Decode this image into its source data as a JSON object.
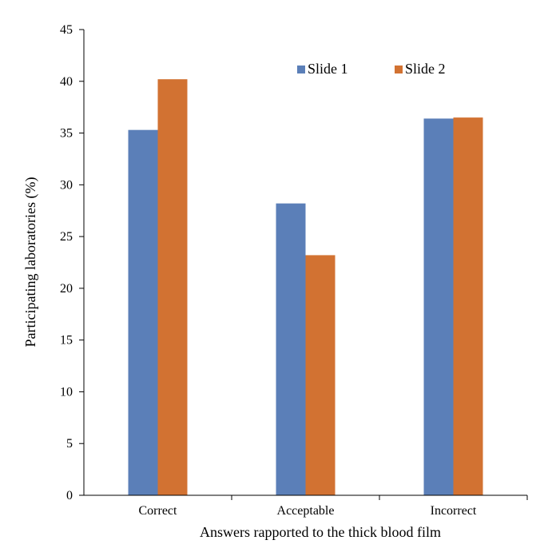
{
  "chart_data": {
    "type": "bar",
    "title": "",
    "xlabel": "Answers rapported to the thick blood film",
    "ylabel": "Participating laboratories (%)",
    "ylim": [
      0,
      45
    ],
    "yticks": [
      0,
      5,
      10,
      15,
      20,
      25,
      30,
      35,
      40,
      45
    ],
    "categories": [
      "Correct",
      "Acceptable",
      "Incorrect"
    ],
    "series": [
      {
        "name": "Slide 1",
        "color": "#5b7fb8",
        "values": [
          35.3,
          28.2,
          36.4
        ]
      },
      {
        "name": "Slide 2",
        "color": "#d27232",
        "values": [
          40.2,
          23.2,
          36.5
        ]
      }
    ],
    "grid": false,
    "legend": "top-right"
  }
}
